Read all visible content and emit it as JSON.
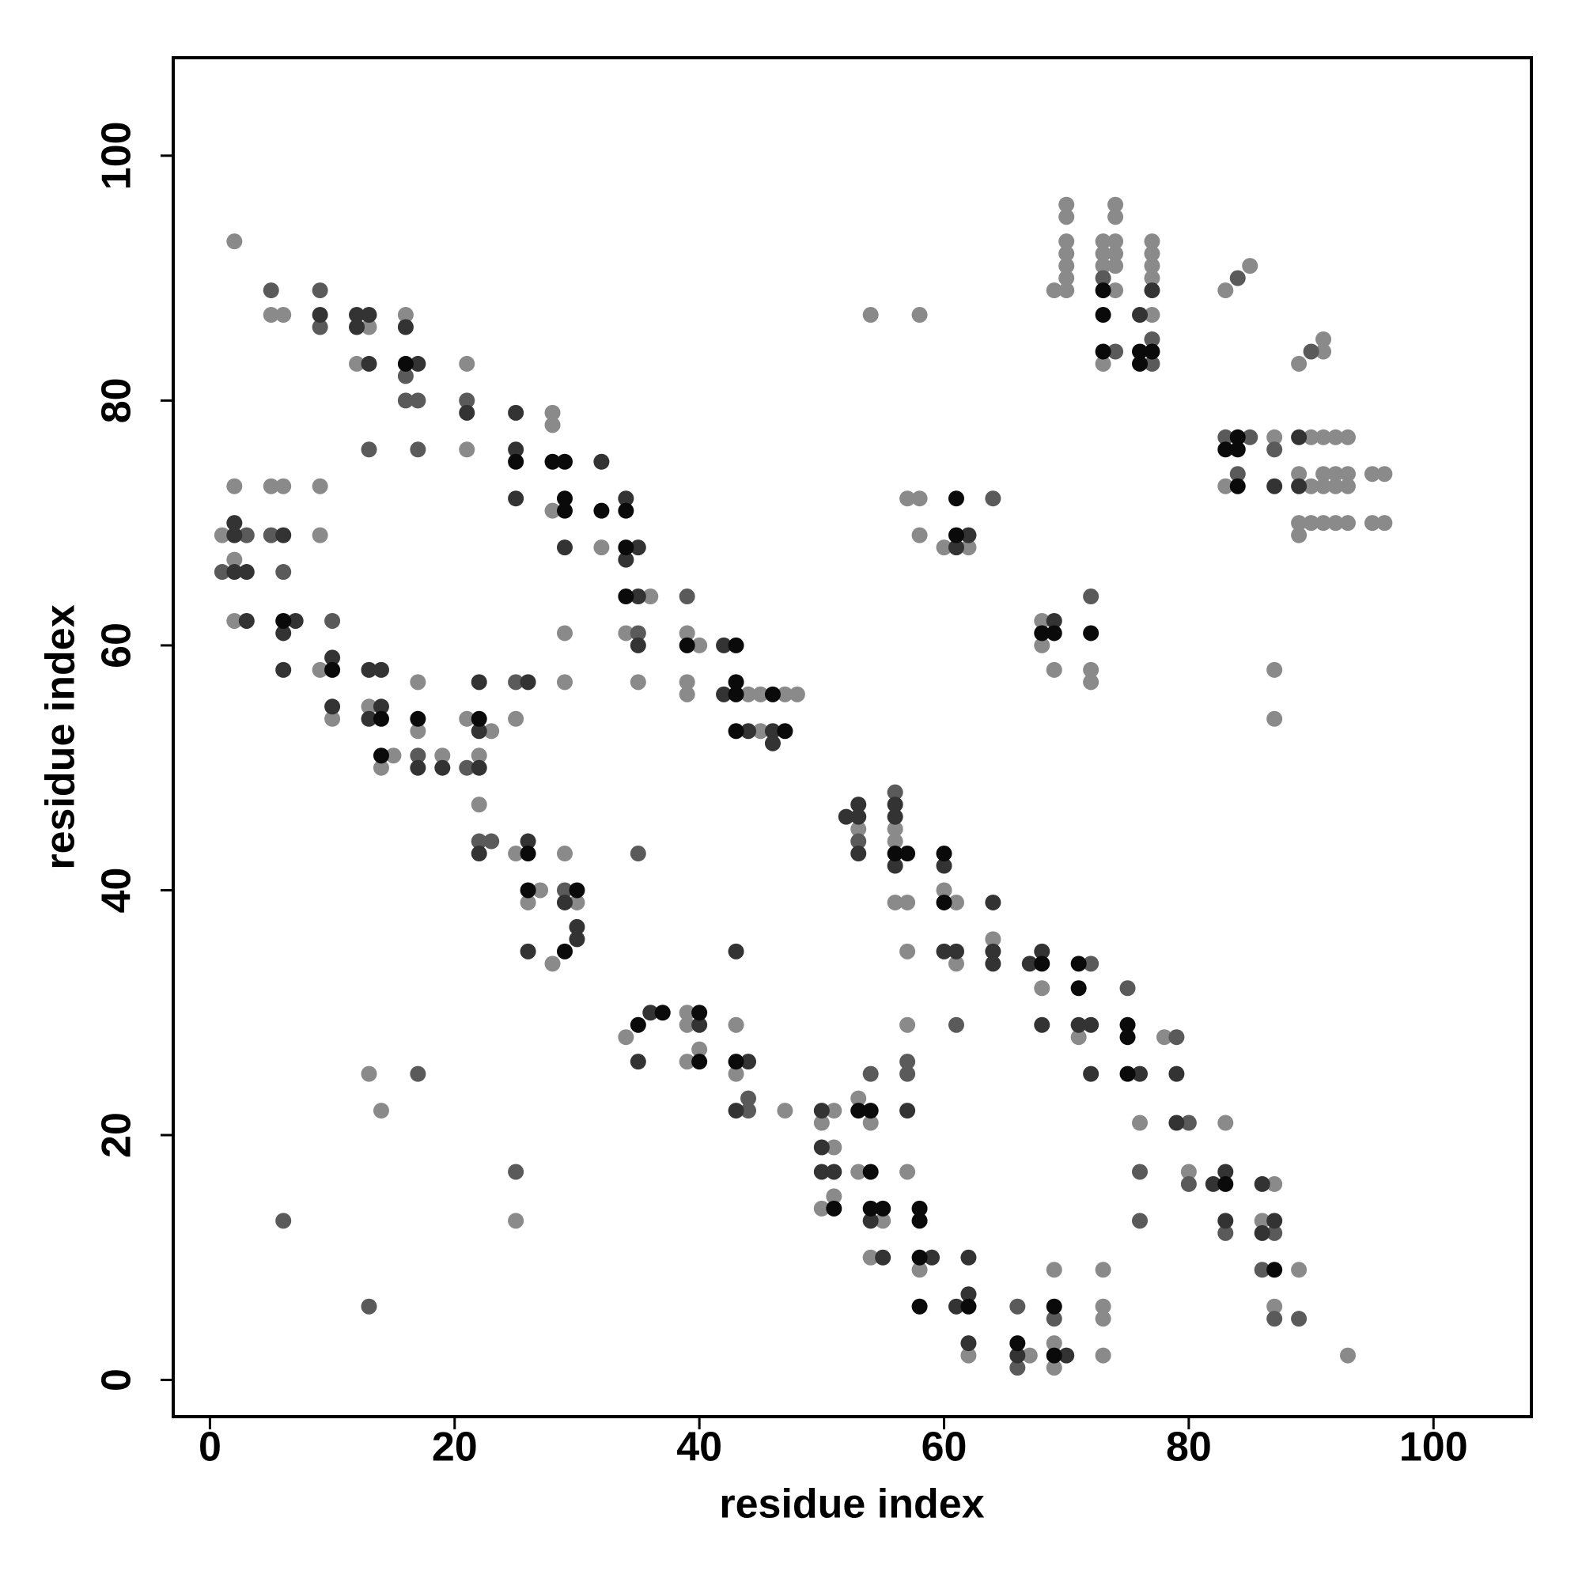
{
  "chart_data": {
    "type": "scatter",
    "xlabel": "residue index",
    "ylabel": "residue index",
    "xlim": [
      -3,
      108
    ],
    "ylim": [
      -3,
      108
    ],
    "xticks": [
      0,
      20,
      40,
      60,
      80,
      100
    ],
    "yticks": [
      0,
      20,
      40,
      60,
      80,
      100
    ],
    "series": [
      {
        "color": "#8a8a8a",
        "x": [
          1,
          2,
          2,
          2,
          2,
          5,
          5,
          6,
          6,
          9,
          9,
          9,
          10,
          12,
          13,
          13,
          13,
          14,
          14,
          15,
          16,
          17,
          17,
          19,
          21,
          21,
          21,
          22,
          22,
          23,
          25,
          25,
          25,
          26,
          27,
          28,
          28,
          28,
          28,
          29,
          29,
          29,
          30,
          32,
          34,
          34,
          35,
          36,
          39,
          39,
          39,
          39,
          39,
          39,
          40,
          40,
          43,
          43,
          44,
          45,
          45,
          47,
          47,
          48,
          50,
          50,
          51,
          51,
          51,
          53,
          53,
          53,
          54,
          54,
          54,
          55,
          56,
          56,
          56,
          57,
          57,
          57,
          57,
          57,
          58,
          58,
          58,
          58,
          60,
          60,
          61,
          61,
          62,
          62,
          64,
          67,
          68,
          68,
          68,
          69,
          69,
          69,
          69,
          69,
          70,
          70,
          70,
          70,
          70,
          70,
          70,
          71,
          72,
          72,
          73,
          73,
          73,
          73,
          73,
          73,
          73,
          73,
          74,
          74,
          74,
          74,
          74,
          74,
          76,
          77,
          77,
          77,
          77,
          77,
          78,
          80,
          83,
          83,
          83,
          85,
          86,
          87,
          87,
          87,
          87,
          87,
          89,
          89,
          89,
          89,
          89,
          90,
          90,
          90,
          91,
          91,
          91,
          91,
          91,
          91,
          92,
          92,
          92,
          92,
          93,
          93,
          93,
          93,
          93,
          95,
          95,
          96,
          96
        ],
        "values": [
          69,
          93,
          73,
          67,
          62,
          87,
          73,
          87,
          73,
          73,
          69,
          58,
          54,
          83,
          86,
          55,
          25,
          50,
          22,
          51,
          87,
          57,
          53,
          51,
          83,
          76,
          54,
          51,
          47,
          53,
          54,
          43,
          13,
          39,
          40,
          79,
          78,
          71,
          34,
          61,
          57,
          43,
          39,
          68,
          61,
          28,
          57,
          64,
          61,
          57,
          56,
          30,
          29,
          26,
          60,
          27,
          29,
          25,
          56,
          56,
          53,
          56,
          22,
          56,
          21,
          14,
          22,
          19,
          15,
          45,
          23,
          17,
          87,
          21,
          10,
          13,
          45,
          44,
          39,
          72,
          39,
          35,
          29,
          17,
          87,
          72,
          69,
          9,
          68,
          40,
          39,
          34,
          68,
          2,
          36,
          2,
          62,
          60,
          32,
          89,
          58,
          9,
          3,
          1,
          96,
          95,
          93,
          92,
          91,
          90,
          89,
          28,
          58,
          57,
          93,
          92,
          91,
          83,
          9,
          6,
          5,
          2,
          96,
          95,
          93,
          92,
          91,
          89,
          21,
          93,
          92,
          91,
          90,
          87,
          28,
          17,
          89,
          73,
          21,
          91,
          13,
          77,
          58,
          54,
          16,
          6,
          83,
          74,
          70,
          69,
          9,
          77,
          73,
          70,
          85,
          84,
          77,
          74,
          73,
          70,
          77,
          74,
          73,
          70,
          77,
          74,
          73,
          70,
          2,
          74,
          70,
          74,
          70
        ]
      },
      {
        "color": "#5a5a5a",
        "x": [
          1,
          3,
          5,
          5,
          6,
          6,
          9,
          9,
          10,
          13,
          13,
          16,
          16,
          17,
          17,
          17,
          17,
          21,
          21,
          22,
          23,
          25,
          25,
          29,
          35,
          35,
          39,
          44,
          44,
          53,
          54,
          56,
          57,
          57,
          61,
          64,
          66,
          66,
          69,
          72,
          72,
          73,
          74,
          75,
          76,
          76,
          77,
          77,
          79,
          80,
          80,
          83,
          83,
          84,
          84,
          85,
          86,
          87,
          87,
          87,
          89,
          90
        ],
        "values": [
          66,
          69,
          89,
          69,
          66,
          13,
          89,
          86,
          62,
          76,
          6,
          82,
          80,
          80,
          76,
          51,
          25,
          80,
          50,
          44,
          44,
          57,
          17,
          40,
          61,
          43,
          64,
          23,
          22,
          44,
          25,
          48,
          26,
          25,
          29,
          72,
          6,
          1,
          5,
          64,
          34,
          90,
          84,
          32,
          17,
          13,
          85,
          83,
          28,
          21,
          16,
          77,
          12,
          90,
          74,
          77,
          9,
          76,
          12,
          5,
          5,
          84
        ]
      },
      {
        "color": "#333333",
        "x": [
          2,
          2,
          2,
          3,
          3,
          6,
          6,
          6,
          7,
          9,
          10,
          10,
          12,
          12,
          13,
          13,
          13,
          13,
          14,
          14,
          16,
          17,
          17,
          19,
          21,
          22,
          22,
          22,
          22,
          25,
          25,
          25,
          26,
          26,
          26,
          29,
          29,
          30,
          30,
          32,
          34,
          34,
          35,
          35,
          35,
          35,
          36,
          40,
          42,
          42,
          43,
          43,
          44,
          44,
          46,
          46,
          50,
          50,
          50,
          51,
          52,
          53,
          53,
          53,
          54,
          55,
          56,
          56,
          56,
          57,
          59,
          60,
          60,
          61,
          61,
          61,
          62,
          62,
          62,
          62,
          64,
          64,
          64,
          66,
          67,
          68,
          68,
          69,
          70,
          71,
          72,
          72,
          76,
          76,
          77,
          79,
          79,
          82,
          83,
          83,
          86,
          86,
          87,
          87,
          89,
          89
        ],
        "values": [
          70,
          69,
          66,
          66,
          62,
          69,
          61,
          58,
          62,
          87,
          59,
          55,
          87,
          86,
          87,
          83,
          58,
          54,
          58,
          55,
          86,
          83,
          50,
          50,
          79,
          57,
          53,
          50,
          43,
          79,
          76,
          72,
          57,
          44,
          35,
          68,
          39,
          37,
          36,
          75,
          72,
          67,
          68,
          64,
          60,
          26,
          30,
          29,
          60,
          56,
          35,
          22,
          53,
          26,
          53,
          52,
          22,
          19,
          17,
          17,
          46,
          47,
          46,
          43,
          13,
          10,
          47,
          46,
          42,
          22,
          10,
          42,
          35,
          68,
          35,
          6,
          69,
          10,
          7,
          3,
          39,
          35,
          34,
          2,
          34,
          35,
          29,
          62,
          2,
          29,
          29,
          25,
          87,
          25,
          89,
          25,
          21,
          16,
          17,
          13,
          16,
          12,
          73,
          13,
          77,
          73
        ]
      },
      {
        "color": "#0a0a0a",
        "x": [
          6,
          10,
          14,
          14,
          16,
          17,
          22,
          25,
          26,
          26,
          28,
          29,
          29,
          29,
          29,
          30,
          32,
          34,
          34,
          34,
          35,
          37,
          39,
          40,
          40,
          43,
          43,
          43,
          43,
          43,
          46,
          47,
          51,
          53,
          54,
          54,
          54,
          55,
          56,
          57,
          58,
          58,
          58,
          58,
          60,
          60,
          61,
          61,
          62,
          66,
          68,
          68,
          69,
          69,
          69,
          71,
          71,
          72,
          73,
          73,
          73,
          75,
          75,
          75,
          76,
          76,
          77,
          83,
          83,
          84,
          84,
          84,
          87
        ],
        "values": [
          62,
          58,
          54,
          51,
          83,
          54,
          54,
          75,
          43,
          40,
          75,
          75,
          72,
          71,
          35,
          40,
          71,
          71,
          68,
          64,
          29,
          30,
          60,
          30,
          26,
          60,
          57,
          56,
          53,
          26,
          56,
          53,
          14,
          22,
          22,
          17,
          14,
          14,
          43,
          43,
          14,
          13,
          10,
          6,
          43,
          39,
          72,
          69,
          6,
          3,
          61,
          34,
          61,
          6,
          2,
          34,
          32,
          61,
          89,
          87,
          84,
          29,
          28,
          25,
          84,
          83,
          84,
          76,
          16,
          77,
          76,
          73,
          9
        ]
      }
    ]
  }
}
